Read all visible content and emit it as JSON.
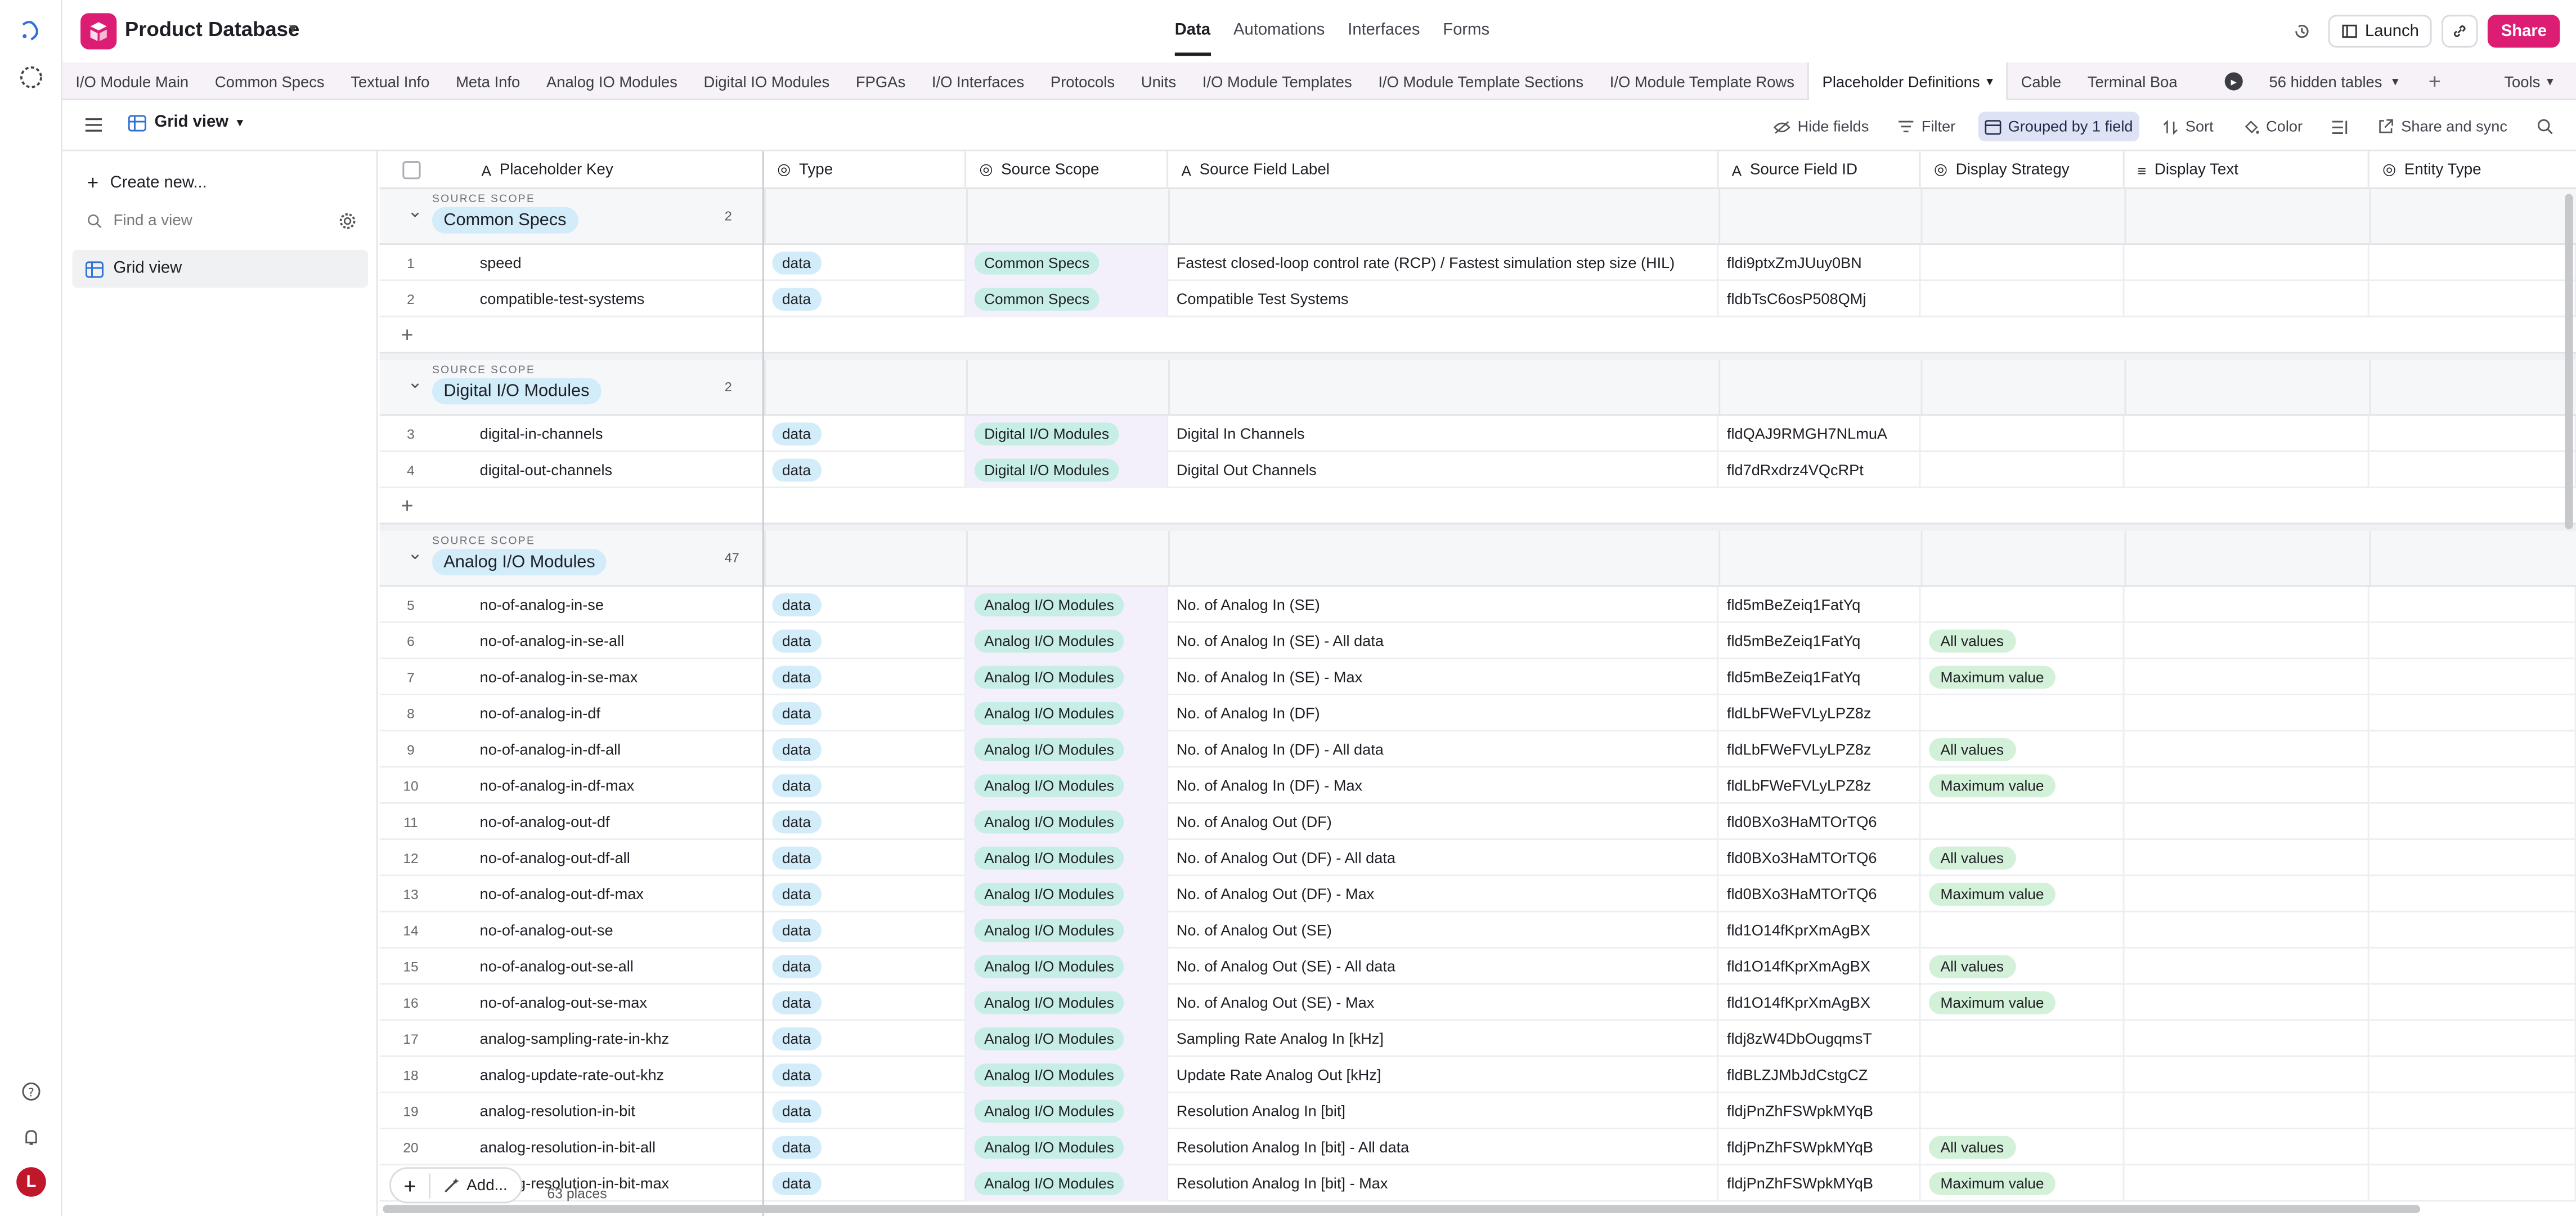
{
  "app": {
    "base_name": "Product Database",
    "nav": [
      "Data",
      "Automations",
      "Interfaces",
      "Forms"
    ],
    "active_nav": "Data",
    "launch_label": "Launch",
    "share_label": "Share",
    "brand_color": "#dd1d74"
  },
  "tables": {
    "items": [
      "I/O Module Main",
      "Common Specs",
      "Textual Info",
      "Meta Info",
      "Analog IO Modules",
      "Digital IO Modules",
      "FPGAs",
      "I/O Interfaces",
      "Protocols",
      "Units",
      "I/O Module Templates",
      "I/O Module Template Sections",
      "I/O Module Template Rows"
    ],
    "active": "Placeholder Definitions",
    "after": [
      "Cable",
      "Terminal Board"
    ],
    "hidden_label": "56 hidden tables",
    "tools_label": "Tools"
  },
  "viewbar": {
    "view_name": "Grid view",
    "hide_fields": "Hide fields",
    "filter": "Filter",
    "grouped": "Grouped by 1 field",
    "sort": "Sort",
    "color": "Color",
    "share_sync": "Share and sync"
  },
  "sidebar": {
    "create_new": "Create new...",
    "find_placeholder": "Find a view",
    "views": [
      "Grid view"
    ]
  },
  "columns": [
    "Placeholder Key",
    "Type",
    "Source Scope",
    "Source Field Label",
    "Source Field ID",
    "Display Strategy",
    "Display Text",
    "Entity Type"
  ],
  "group_caption": "SOURCE SCOPE",
  "groups": [
    {
      "name": "Common Specs",
      "count": "2",
      "rows": [
        {
          "n": "1",
          "key": "speed",
          "type": "data",
          "scope": "Common Specs",
          "label": "Fastest closed-loop control rate (RCP) / Fastest simulation step size (HIL)",
          "fid": "fldi9ptxZmJUuy0BN",
          "strategy": ""
        },
        {
          "n": "2",
          "key": "compatible-test-systems",
          "type": "data",
          "scope": "Common Specs",
          "label": "Compatible Test Systems",
          "fid": "fldbTsC6osP508QMj",
          "strategy": ""
        }
      ]
    },
    {
      "name": "Digital I/O Modules",
      "count": "2",
      "rows": [
        {
          "n": "3",
          "key": "digital-in-channels",
          "type": "data",
          "scope": "Digital I/O Modules",
          "label": "Digital In Channels",
          "fid": "fldQAJ9RMGH7NLmuA",
          "strategy": ""
        },
        {
          "n": "4",
          "key": "digital-out-channels",
          "type": "data",
          "scope": "Digital I/O Modules",
          "label": "Digital Out Channels",
          "fid": "fld7dRxdrz4VQcRPt",
          "strategy": ""
        }
      ]
    },
    {
      "name": "Analog I/O Modules",
      "count": "47",
      "rows": [
        {
          "n": "5",
          "key": "no-of-analog-in-se",
          "type": "data",
          "scope": "Analog I/O Modules",
          "label": "No. of Analog In (SE)",
          "fid": "fld5mBeZeiq1FatYq",
          "strategy": ""
        },
        {
          "n": "6",
          "key": "no-of-analog-in-se-all",
          "type": "data",
          "scope": "Analog I/O Modules",
          "label": "No. of Analog In (SE) - All data",
          "fid": "fld5mBeZeiq1FatYq",
          "strategy": "All values"
        },
        {
          "n": "7",
          "key": "no-of-analog-in-se-max",
          "type": "data",
          "scope": "Analog I/O Modules",
          "label": "No. of Analog In (SE) - Max",
          "fid": "fld5mBeZeiq1FatYq",
          "strategy": "Maximum value"
        },
        {
          "n": "8",
          "key": "no-of-analog-in-df",
          "type": "data",
          "scope": "Analog I/O Modules",
          "label": "No. of Analog In (DF)",
          "fid": "fldLbFWeFVLyLPZ8z",
          "strategy": ""
        },
        {
          "n": "9",
          "key": "no-of-analog-in-df-all",
          "type": "data",
          "scope": "Analog I/O Modules",
          "label": "No. of Analog In (DF) - All data",
          "fid": "fldLbFWeFVLyLPZ8z",
          "strategy": "All values"
        },
        {
          "n": "10",
          "key": "no-of-analog-in-df-max",
          "type": "data",
          "scope": "Analog I/O Modules",
          "label": "No. of Analog In (DF) - Max",
          "fid": "fldLbFWeFVLyLPZ8z",
          "strategy": "Maximum value"
        },
        {
          "n": "11",
          "key": "no-of-analog-out-df",
          "type": "data",
          "scope": "Analog I/O Modules",
          "label": "No. of Analog Out (DF)",
          "fid": "fld0BXo3HaMTOrTQ6",
          "strategy": ""
        },
        {
          "n": "12",
          "key": "no-of-analog-out-df-all",
          "type": "data",
          "scope": "Analog I/O Modules",
          "label": "No. of Analog Out (DF) - All data",
          "fid": "fld0BXo3HaMTOrTQ6",
          "strategy": "All values"
        },
        {
          "n": "13",
          "key": "no-of-analog-out-df-max",
          "type": "data",
          "scope": "Analog I/O Modules",
          "label": "No. of Analog Out (DF) - Max",
          "fid": "fld0BXo3HaMTOrTQ6",
          "strategy": "Maximum value"
        },
        {
          "n": "14",
          "key": "no-of-analog-out-se",
          "type": "data",
          "scope": "Analog I/O Modules",
          "label": "No. of Analog Out (SE)",
          "fid": "fld1O14fKprXmAgBX",
          "strategy": ""
        },
        {
          "n": "15",
          "key": "no-of-analog-out-se-all",
          "type": "data",
          "scope": "Analog I/O Modules",
          "label": "No. of Analog Out (SE) - All data",
          "fid": "fld1O14fKprXmAgBX",
          "strategy": "All values"
        },
        {
          "n": "16",
          "key": "no-of-analog-out-se-max",
          "type": "data",
          "scope": "Analog I/O Modules",
          "label": "No. of Analog Out (SE) - Max",
          "fid": "fld1O14fKprXmAgBX",
          "strategy": "Maximum value"
        },
        {
          "n": "17",
          "key": "analog-sampling-rate-in-khz",
          "type": "data",
          "scope": "Analog I/O Modules",
          "label": "Sampling Rate Analog In [kHz]",
          "fid": "fldj8zW4DbOugqmsT",
          "strategy": ""
        },
        {
          "n": "18",
          "key": "analog-update-rate-out-khz",
          "type": "data",
          "scope": "Analog I/O Modules",
          "label": "Update Rate Analog Out [kHz]",
          "fid": "fldBLZJMbJdCstgCZ",
          "strategy": ""
        },
        {
          "n": "19",
          "key": "analog-resolution-in-bit",
          "type": "data",
          "scope": "Analog I/O Modules",
          "label": "Resolution Analog In [bit]",
          "fid": "fldjPnZhFSWpkMYqB",
          "strategy": ""
        },
        {
          "n": "20",
          "key": "analog-resolution-in-bit-all",
          "type": "data",
          "scope": "Analog I/O Modules",
          "label": "Resolution Analog In [bit] - All data",
          "fid": "fldjPnZhFSWpkMYqB",
          "strategy": "All values"
        },
        {
          "n": "21",
          "key": "analog-resolution-in-bit-max",
          "type": "data",
          "scope": "Analog I/O Modules",
          "label": "Resolution Analog In [bit] - Max",
          "fid": "fldjPnZhFSWpkMYqB",
          "strategy": "Maximum value"
        }
      ]
    }
  ],
  "footer": {
    "add_label": "Add...",
    "record_count": "63 places"
  }
}
